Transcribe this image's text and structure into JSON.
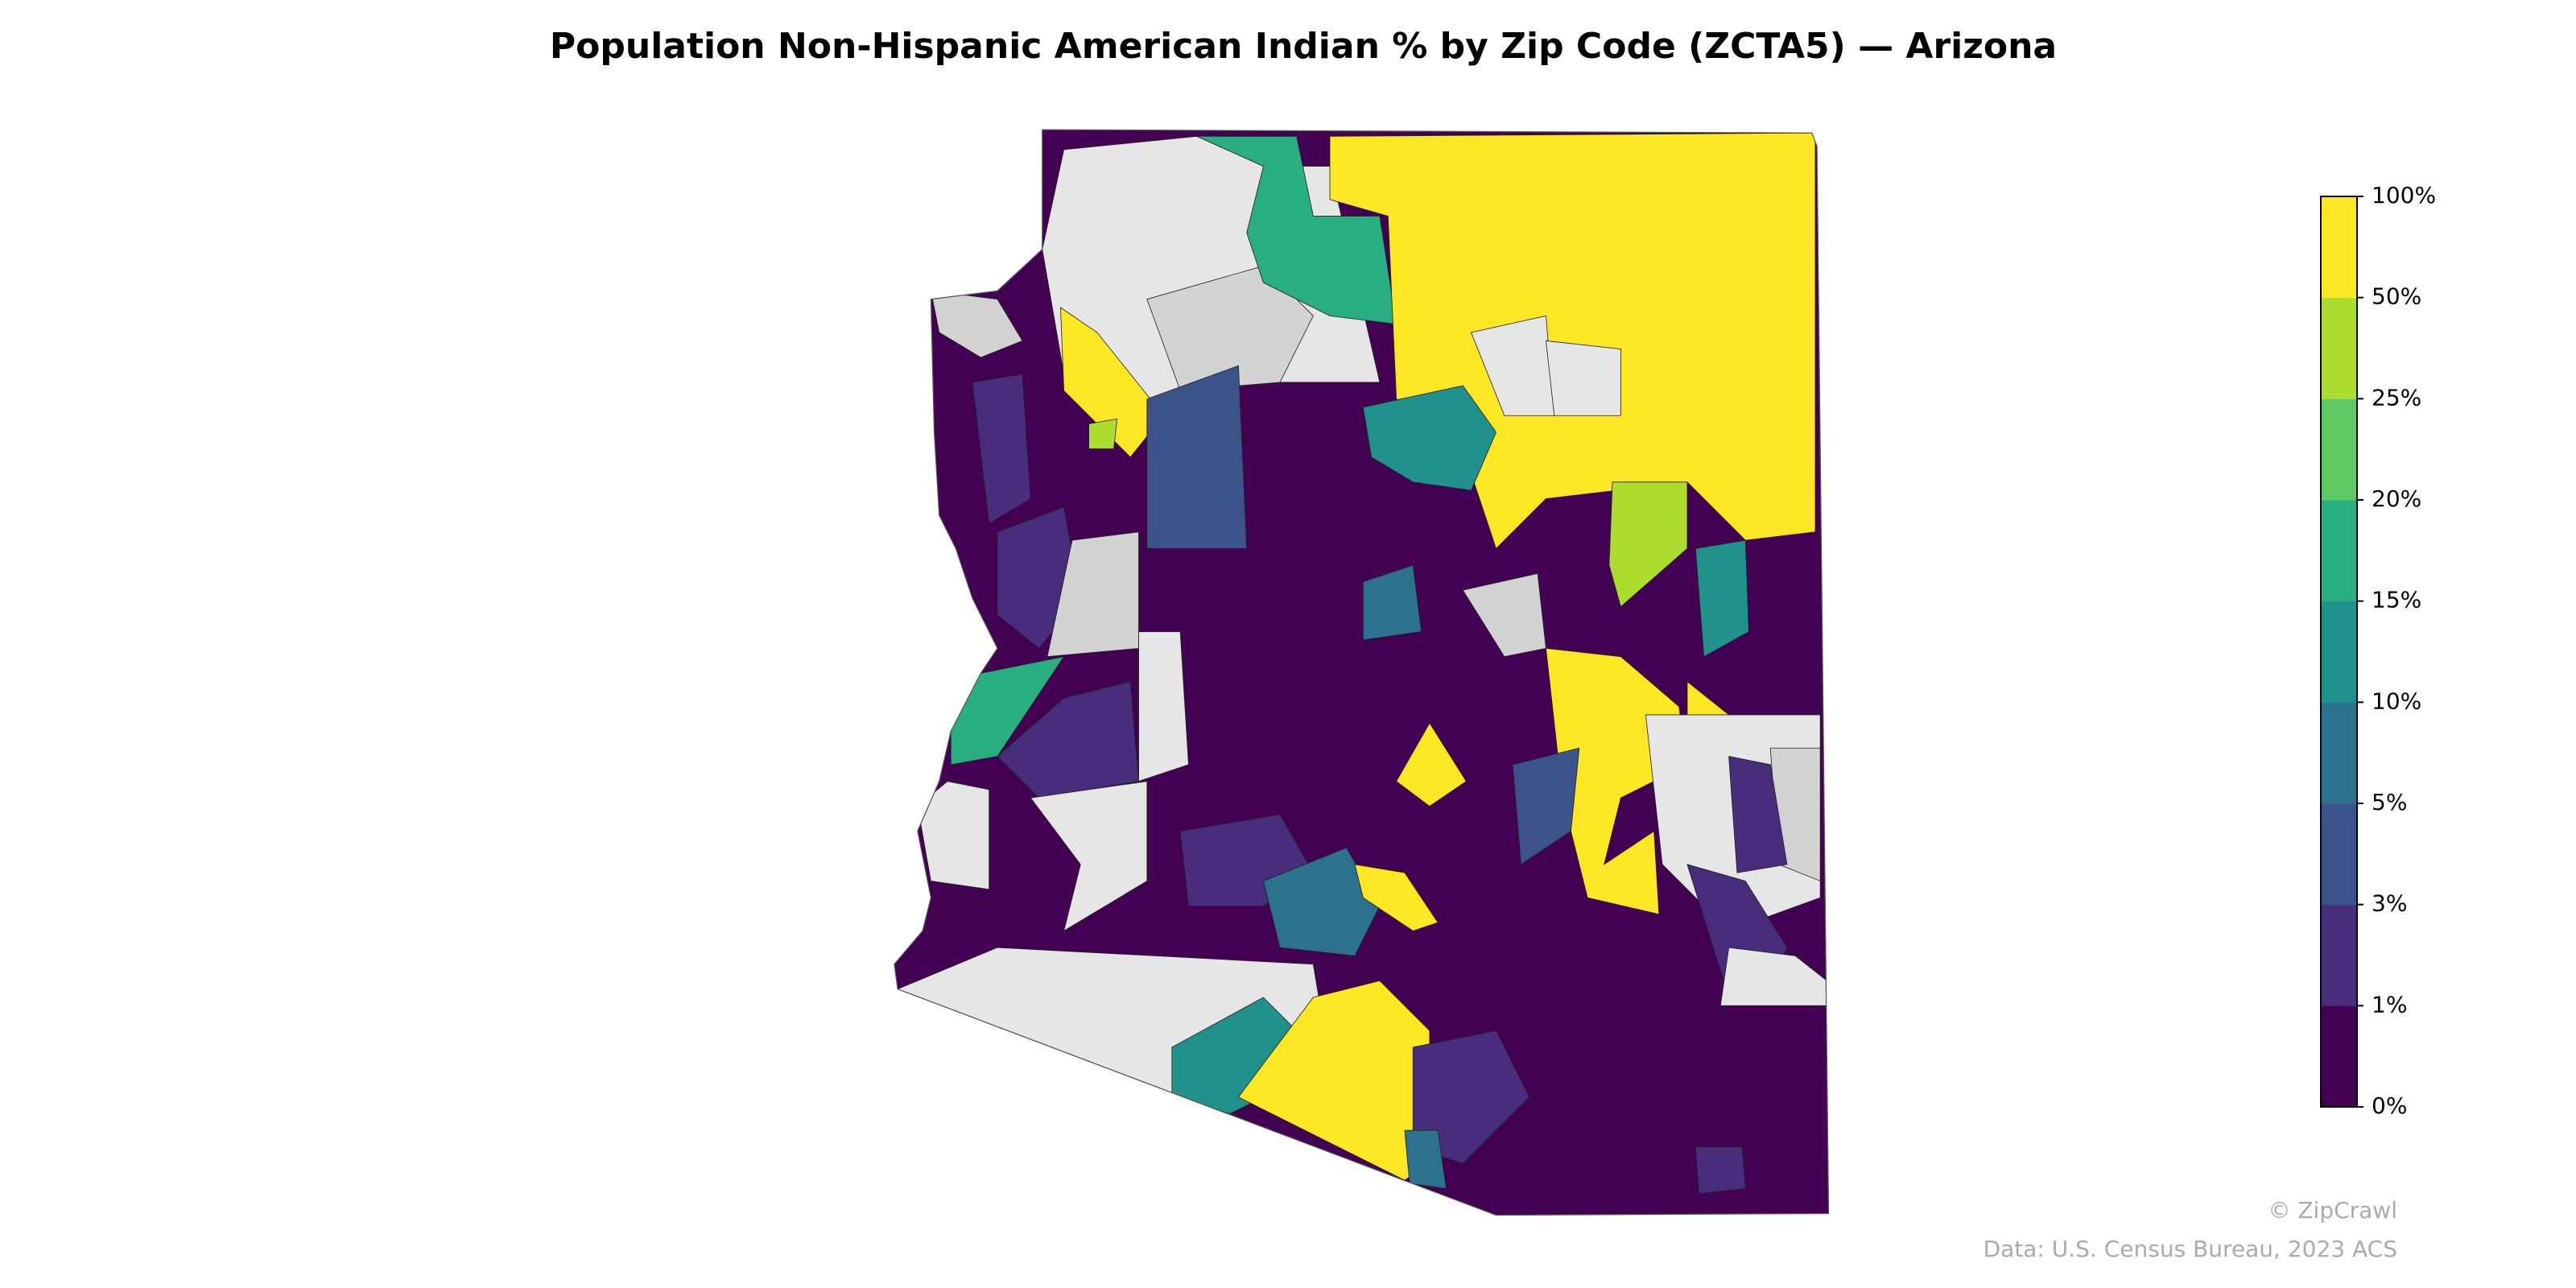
{
  "title": "Population Non-Hispanic American Indian % by Zip Code (ZCTA5) — Arizona",
  "colorbar": {
    "colors": [
      "#440154",
      "#472d7b",
      "#3b528b",
      "#2c728e",
      "#21918c",
      "#28ae80",
      "#5ec962",
      "#addc30",
      "#fde725"
    ],
    "ticks": [
      {
        "value": 0,
        "label": "0%"
      },
      {
        "value": 1,
        "label": "1%"
      },
      {
        "value": 3,
        "label": "3%"
      },
      {
        "value": 5,
        "label": "5%"
      },
      {
        "value": 10,
        "label": "10%"
      },
      {
        "value": 15,
        "label": "15%"
      },
      {
        "value": 20,
        "label": "20%"
      },
      {
        "value": 25,
        "label": "25%"
      },
      {
        "value": 50,
        "label": "50%"
      },
      {
        "value": 100,
        "label": "100%"
      }
    ]
  },
  "footer": {
    "credit": "© ZipCrawl",
    "source": "Data: U.S. Census Bureau, 2023 ACS"
  }
}
